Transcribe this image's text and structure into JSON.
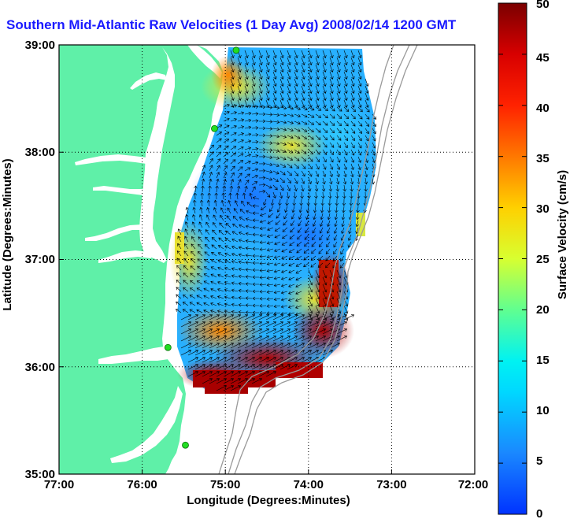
{
  "title": "Southern Mid-Atlantic Raw Velocities (1 Day Avg) 2008/02/14 1200 GMT",
  "x_axis": {
    "label": "Longitude (Degrees:Minutes)",
    "ticks": [
      "77:00",
      "76:00",
      "75:00",
      "74:00",
      "73:00",
      "72:00"
    ]
  },
  "y_axis": {
    "label": "Latitude (Degrees:Minutes)",
    "ticks": [
      "39:00",
      "38:00",
      "37:00",
      "36:00",
      "35:00"
    ]
  },
  "colorbar": {
    "label": "Surface Velocity (cm/s)",
    "ticks": [
      "50",
      "45",
      "40",
      "35",
      "30",
      "25",
      "20",
      "15",
      "10",
      "5",
      "0"
    ],
    "min": 0,
    "max": 50
  },
  "colors": {
    "land": "#5ff0a8",
    "water": "#ffffff",
    "title": "#1a1aff",
    "site_marker": "#22dd22",
    "bathymetry": "#9a9a9a"
  },
  "map_extent": {
    "lon_min": -77,
    "lon_max": -72,
    "lat_min": 35,
    "lat_max": 39
  },
  "grid": true,
  "chart_data": {
    "type": "heatmap",
    "title": "Southern Mid-Atlantic Raw Velocities (1 Day Avg) 2008/02/14 1200 GMT",
    "xlabel": "Longitude (Degrees:Minutes)",
    "ylabel": "Latitude (Degrees:Minutes)",
    "x_range": [
      -77,
      -72
    ],
    "y_range": [
      35,
      39
    ],
    "value_range": [
      0,
      50
    ],
    "value_label": "Surface Velocity (cm/s)",
    "regions": [
      {
        "lon": -74.9,
        "lat": 38.8,
        "speed": 30
      },
      {
        "lon": -74.4,
        "lat": 38.0,
        "speed": 22
      },
      {
        "lon": -75.1,
        "lat": 37.6,
        "speed": 6
      },
      {
        "lon": -74.2,
        "lat": 37.2,
        "speed": 4
      },
      {
        "lon": -73.7,
        "lat": 37.8,
        "speed": 8
      },
      {
        "lon": -75.5,
        "lat": 36.9,
        "speed": 28
      },
      {
        "lon": -74.0,
        "lat": 36.7,
        "speed": 42
      },
      {
        "lon": -73.9,
        "lat": 36.2,
        "speed": 48
      },
      {
        "lon": -74.7,
        "lat": 36.1,
        "speed": 50
      },
      {
        "lon": -75.1,
        "lat": 36.4,
        "speed": 35
      }
    ],
    "sites": [
      {
        "lon": -74.87,
        "lat": 38.95
      },
      {
        "lon": -75.13,
        "lat": 38.22
      },
      {
        "lon": -75.69,
        "lat": 36.18
      },
      {
        "lon": -75.48,
        "lat": 35.27
      }
    ]
  }
}
